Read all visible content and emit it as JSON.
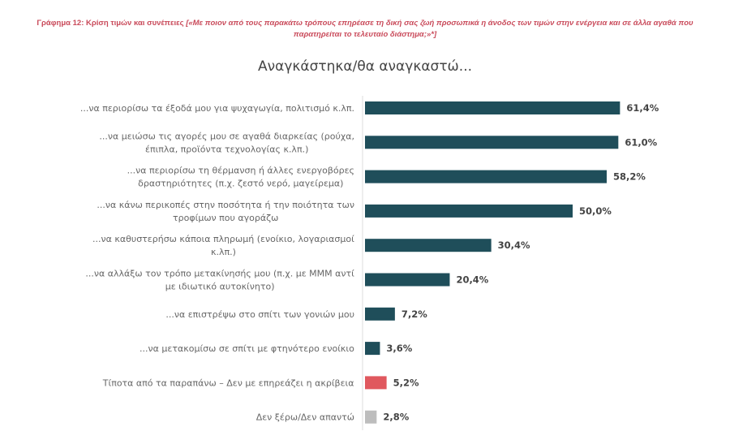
{
  "chart_data": {
    "type": "bar",
    "orientation": "horizontal",
    "title_prefix": "Γράφημα 12: Κρίση τιμών και συνέπειες ",
    "title_question": "[«Με ποιον από τους παρακάτω τρόπους επηρέασε τη δική σας ζωή προσωπικά η άνοδος των τιμών στην ενέργεια και σε άλλα αγαθά που παρατηρείται το τελευταίο διάστημα;»*]",
    "subtitle": "Αναγκάστηκα/θα αναγκαστώ...",
    "categories": [
      [
        "...να περιορίσω τα έξοδά μου για ψυχαγωγία, πολιτισμό κ.λπ."
      ],
      [
        "...να μειώσω τις αγορές μου σε αγαθά διαρκείας (ρούχα,",
        "έπιπλα, προϊόντα τεχνολογίας κ.λπ.)"
      ],
      [
        "...να περιορίσω τη θέρμανση ή άλλες ενεργοβόρες",
        "δραστηριότητες (π.χ. ζεστό νερό, μαγείρεμα)"
      ],
      [
        "...να κάνω περικοπές στην ποσότητα ή την ποιότητα των",
        "τροφίμων που αγοράζω"
      ],
      [
        "...να καθυστερήσω κάποια πληρωμή (ενοίκιο, λογαριασμοί",
        "κ.λπ.)"
      ],
      [
        "...να αλλάξω τον τρόπο μετακίνησής μου (π.χ. με ΜΜΜ αντί",
        "με ιδιωτικό αυτοκίνητο)"
      ],
      [
        "...να επιστρέψω στο σπίτι των γονιών μου"
      ],
      [
        "...να μετακομίσω σε σπίτι με φτηνότερο ενοίκιο"
      ],
      [
        "Τίποτα από τα παραπάνω – Δεν με επηρεάζει η ακρίβεια"
      ],
      [
        "Δεν ξέρω/Δεν απαντώ"
      ]
    ],
    "values": [
      61.4,
      61.0,
      58.2,
      50.0,
      30.4,
      20.4,
      7.2,
      3.6,
      5.2,
      2.8
    ],
    "value_labels": [
      "61,4%",
      "61,0%",
      "58,2%",
      "50,0%",
      "30,4%",
      "20,4%",
      "7,2%",
      "3,6%",
      "5,2%",
      "2,8%"
    ],
    "colors": [
      "#1f4e5a",
      "#1f4e5a",
      "#1f4e5a",
      "#1f4e5a",
      "#1f4e5a",
      "#1f4e5a",
      "#1f4e5a",
      "#1f4e5a",
      "#e0585e",
      "#bdbdbd"
    ],
    "xlim": [
      0,
      100
    ],
    "grid": false,
    "unit": "%"
  }
}
